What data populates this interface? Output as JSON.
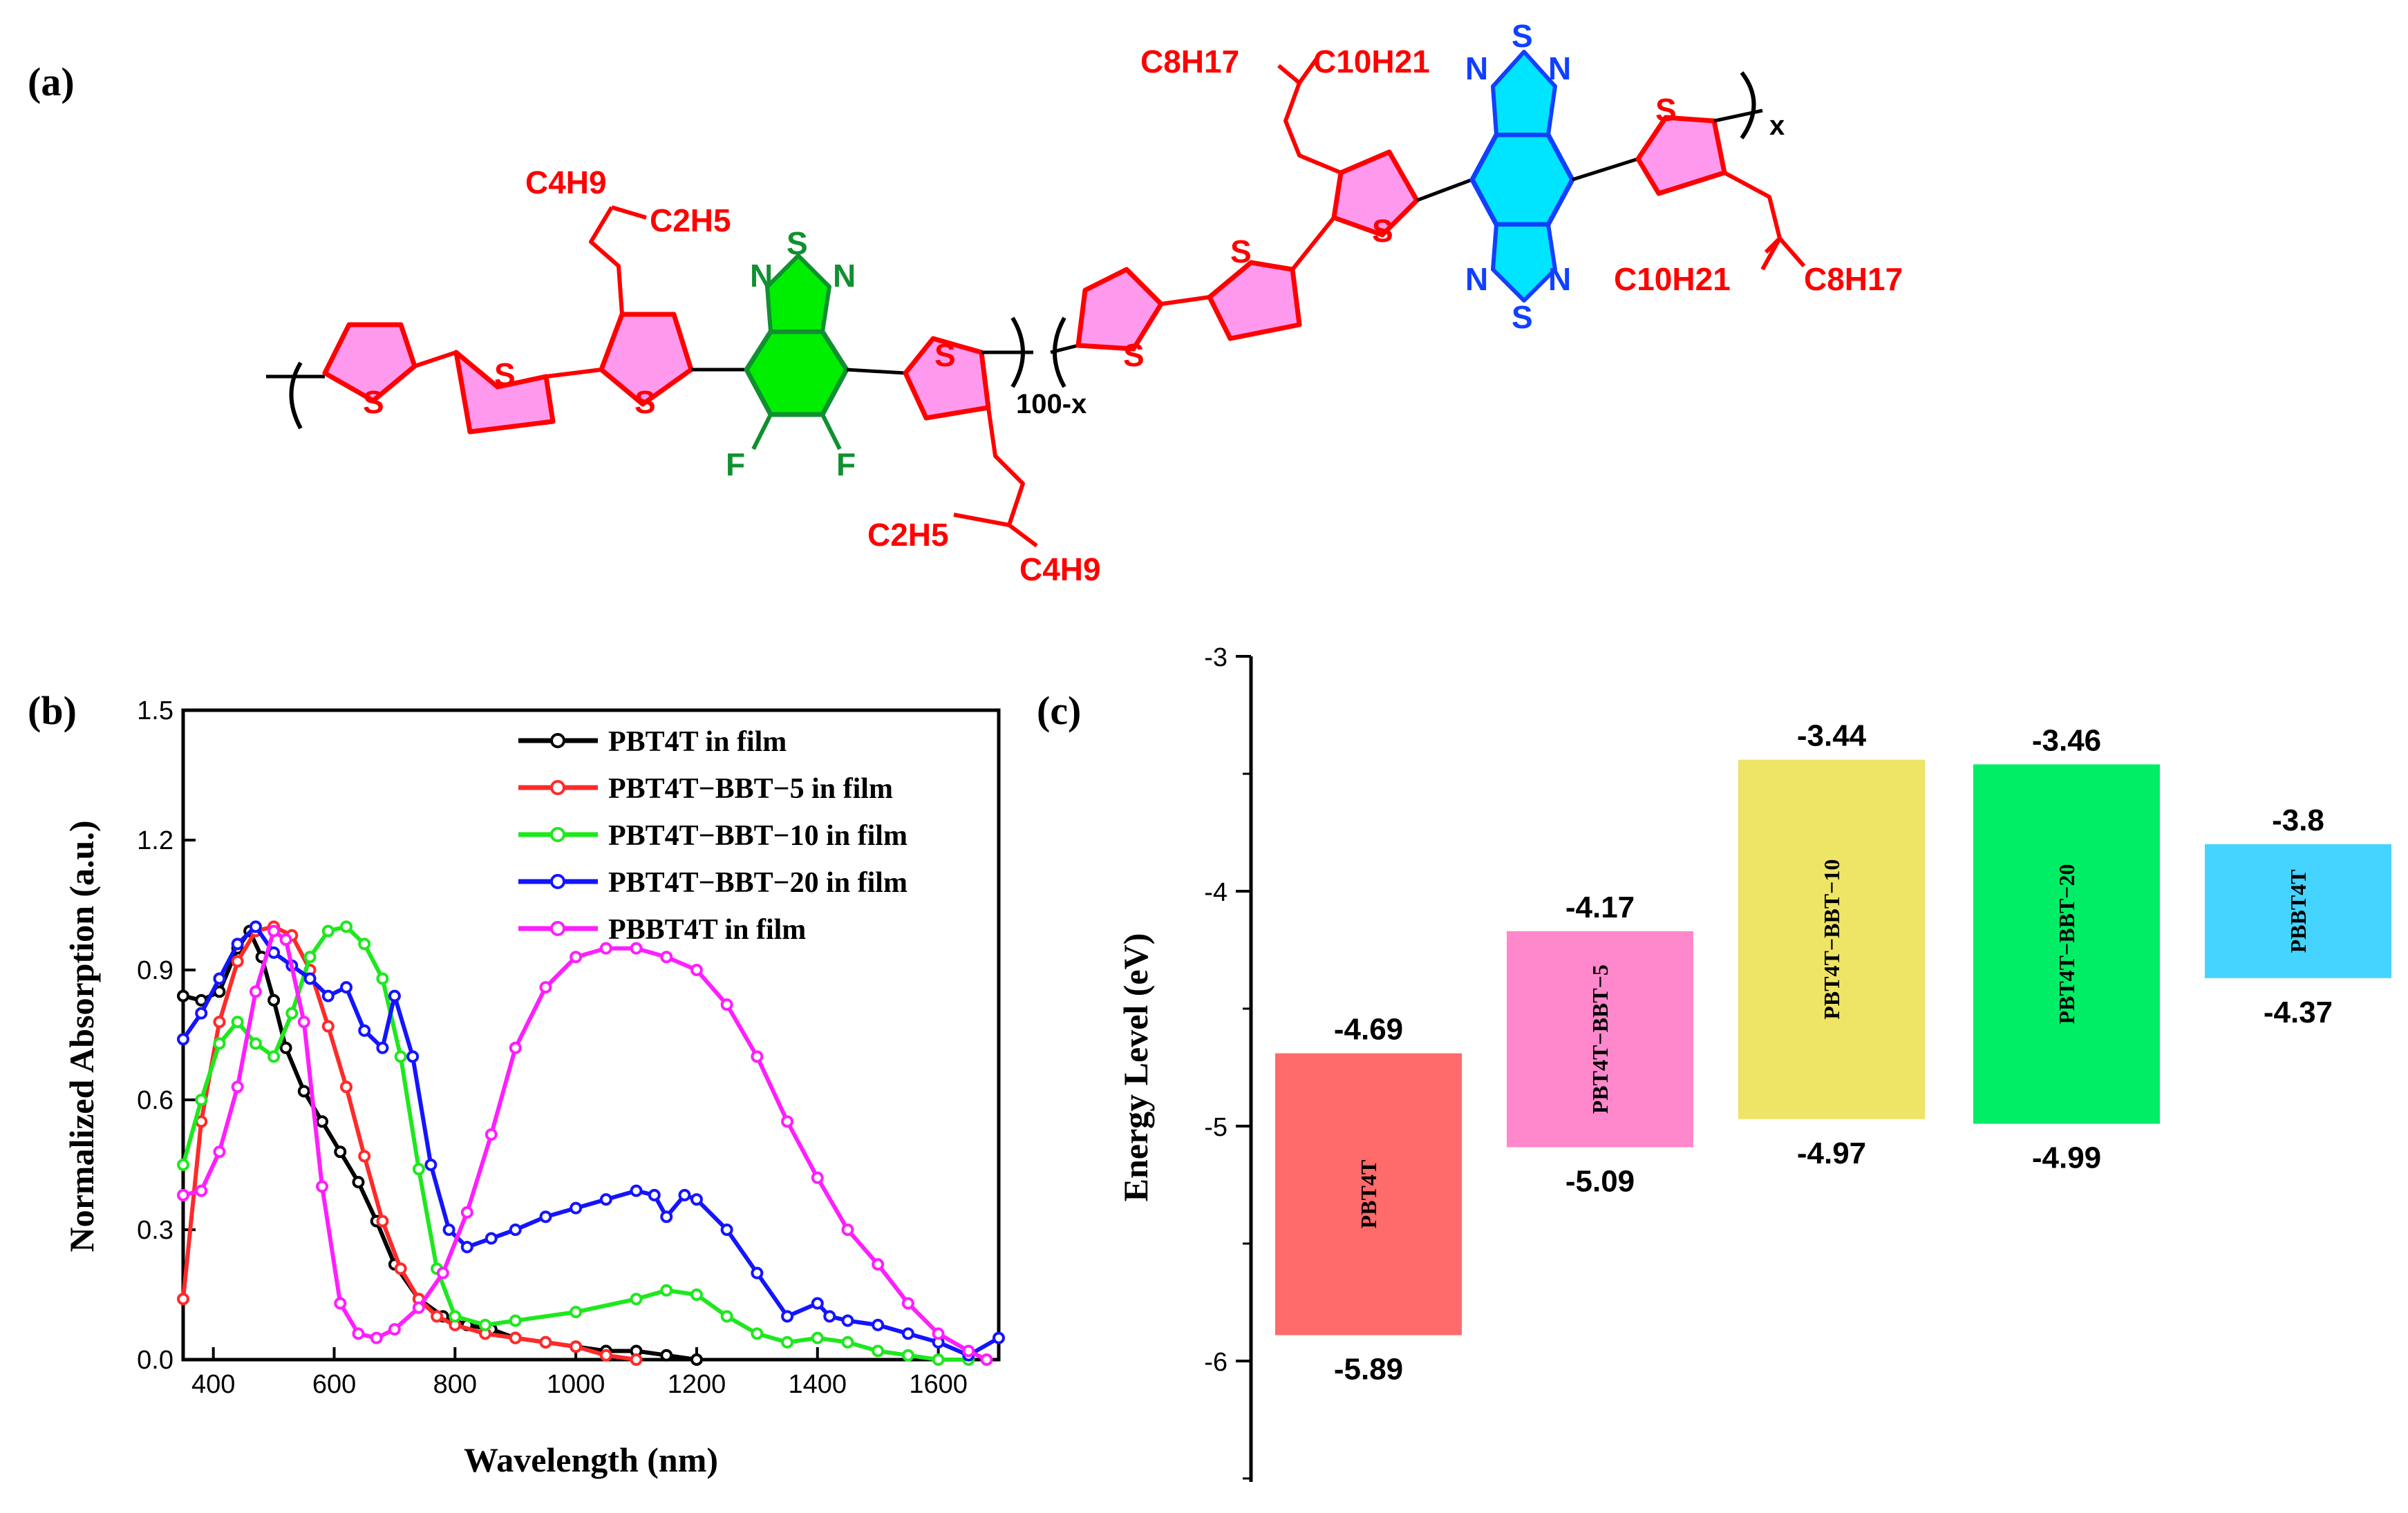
{
  "panel_labels": {
    "a": "(a)",
    "b": "(b)",
    "c": "(c)"
  },
  "structure": {
    "repeat_left": "100-x",
    "repeat_right": "x",
    "substituents": {
      "c4h9": "C4H9",
      "c2h5": "C2H5",
      "c8h17": "C8H17",
      "c10h21": "C10H21"
    },
    "atoms": {
      "S": "S",
      "N": "N",
      "F": "F"
    },
    "colors": {
      "chain": "#ff0000",
      "thiophene_fill": "#ff99ee",
      "bt_fill": "#00ee00",
      "bt_text": "#109030",
      "bbt_fill": "#00e5ff",
      "bbt_text": "#1040ff",
      "bond": "#000000"
    }
  },
  "chart_data": [
    {
      "type": "line",
      "xlabel": "Wavelength (nm)",
      "ylabel": "Normalized Absorption (a.u.)",
      "xlim": [
        350,
        1700
      ],
      "ylim": [
        0,
        1.5
      ],
      "xticks": [
        400,
        600,
        800,
        1000,
        1200,
        1400,
        1600
      ],
      "yticks": [
        0.0,
        0.3,
        0.6,
        0.9,
        1.2,
        1.5
      ],
      "legend_position": "top-right",
      "series": [
        {
          "name": "PBT4T in film",
          "color": "#000000",
          "x": [
            350,
            380,
            410,
            440,
            460,
            480,
            500,
            520,
            550,
            580,
            610,
            640,
            670,
            700,
            740,
            780,
            820,
            860,
            900,
            950,
            1000,
            1050,
            1100,
            1150,
            1200
          ],
          "y": [
            0.84,
            0.83,
            0.85,
            0.95,
            0.99,
            0.93,
            0.83,
            0.72,
            0.62,
            0.55,
            0.48,
            0.41,
            0.32,
            0.22,
            0.14,
            0.1,
            0.08,
            0.07,
            0.05,
            0.04,
            0.03,
            0.02,
            0.02,
            0.01,
            0.0
          ]
        },
        {
          "name": "PBT4T−BBT−5 in film",
          "color": "#ff2a2a",
          "x": [
            350,
            380,
            410,
            440,
            470,
            500,
            530,
            560,
            590,
            620,
            650,
            680,
            710,
            740,
            770,
            800,
            850,
            900,
            950,
            1000,
            1050,
            1100
          ],
          "y": [
            0.14,
            0.55,
            0.78,
            0.92,
            0.99,
            1.0,
            0.98,
            0.9,
            0.77,
            0.63,
            0.47,
            0.32,
            0.21,
            0.14,
            0.1,
            0.08,
            0.06,
            0.05,
            0.04,
            0.03,
            0.01,
            0.0
          ]
        },
        {
          "name": "PBT4T−BBT−10 in film",
          "color": "#1ee81e",
          "x": [
            350,
            380,
            410,
            440,
            470,
            500,
            530,
            560,
            590,
            620,
            650,
            680,
            710,
            740,
            770,
            800,
            850,
            900,
            1000,
            1100,
            1150,
            1200,
            1250,
            1300,
            1350,
            1400,
            1450,
            1500,
            1550,
            1600,
            1650
          ],
          "y": [
            0.45,
            0.6,
            0.73,
            0.78,
            0.73,
            0.7,
            0.8,
            0.93,
            0.99,
            1.0,
            0.96,
            0.88,
            0.7,
            0.44,
            0.21,
            0.1,
            0.08,
            0.09,
            0.11,
            0.14,
            0.16,
            0.15,
            0.1,
            0.06,
            0.04,
            0.05,
            0.04,
            0.02,
            0.01,
            0.0,
            0.0
          ]
        },
        {
          "name": "PBT4T−BBT−20 in film",
          "color": "#1414ff",
          "x": [
            350,
            380,
            410,
            440,
            470,
            500,
            530,
            560,
            590,
            620,
            650,
            680,
            700,
            730,
            760,
            790,
            820,
            860,
            900,
            950,
            1000,
            1050,
            1100,
            1130,
            1150,
            1180,
            1200,
            1250,
            1300,
            1350,
            1400,
            1420,
            1450,
            1500,
            1550,
            1600,
            1650,
            1700
          ],
          "y": [
            0.74,
            0.8,
            0.88,
            0.96,
            1.0,
            0.94,
            0.91,
            0.88,
            0.84,
            0.86,
            0.76,
            0.72,
            0.84,
            0.7,
            0.45,
            0.3,
            0.26,
            0.28,
            0.3,
            0.33,
            0.35,
            0.37,
            0.39,
            0.38,
            0.33,
            0.38,
            0.37,
            0.3,
            0.2,
            0.1,
            0.13,
            0.1,
            0.09,
            0.08,
            0.06,
            0.04,
            0.01,
            0.05
          ]
        },
        {
          "name": "PBBT4T in film",
          "color": "#ff1eff",
          "x": [
            350,
            380,
            410,
            440,
            470,
            500,
            520,
            550,
            580,
            610,
            640,
            670,
            700,
            740,
            780,
            820,
            860,
            900,
            950,
            1000,
            1050,
            1100,
            1150,
            1200,
            1250,
            1300,
            1350,
            1400,
            1450,
            1500,
            1550,
            1600,
            1650,
            1680
          ],
          "y": [
            0.38,
            0.39,
            0.48,
            0.63,
            0.85,
            0.99,
            0.97,
            0.78,
            0.4,
            0.13,
            0.06,
            0.05,
            0.07,
            0.12,
            0.2,
            0.34,
            0.52,
            0.72,
            0.86,
            0.93,
            0.95,
            0.95,
            0.93,
            0.9,
            0.82,
            0.7,
            0.55,
            0.42,
            0.3,
            0.22,
            0.13,
            0.06,
            0.02,
            0.0
          ]
        }
      ]
    },
    {
      "type": "bar",
      "ylabel": "Energy Level (eV)",
      "ylim": [
        -6.5,
        -3
      ],
      "yticks": [
        -3,
        -4,
        -5,
        -6
      ],
      "categories": [
        "PBT4T",
        "PBT4T−BBT−5",
        "PBT4T−BBT−10",
        "PBT4T−BBT−20",
        "PBBT4T"
      ],
      "lumo": [
        -4.69,
        -4.17,
        -3.44,
        -3.46,
        -3.8
      ],
      "homo": [
        -5.89,
        -5.09,
        -4.97,
        -4.99,
        -4.37
      ],
      "lumo_labels": [
        "-4.69",
        "-4.17",
        "-3.44",
        "-3.46",
        "-3.8"
      ],
      "homo_labels": [
        "-5.89",
        "-5.09",
        "-4.97",
        "-4.99",
        "-4.37"
      ],
      "colors": [
        "#ff6a6a",
        "#ff88cc",
        "#eee466",
        "#00ee66",
        "#44d4ff"
      ]
    }
  ]
}
